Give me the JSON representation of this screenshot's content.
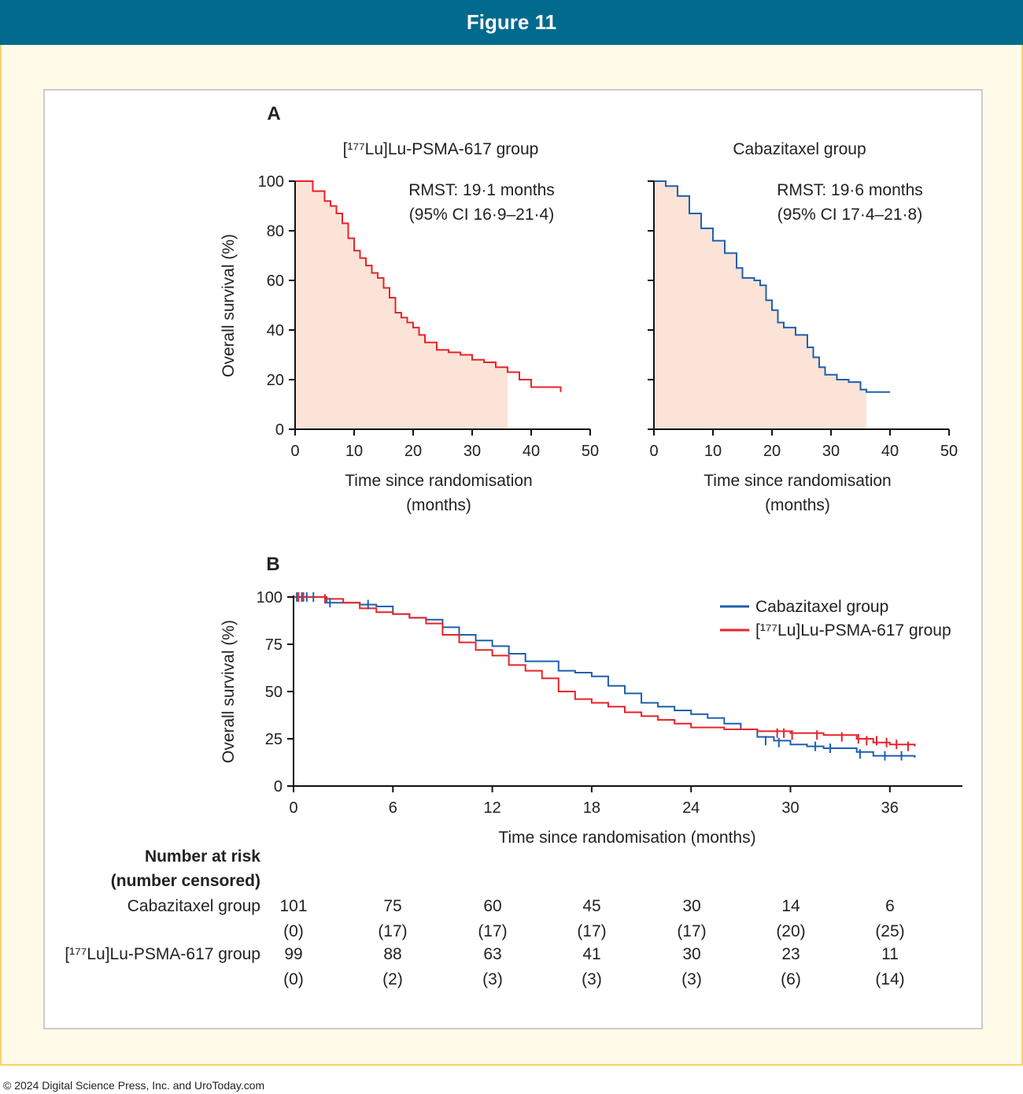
{
  "header": {
    "title": "Figure 11"
  },
  "footer": {
    "copyright": "© 2024 Digital Science Press, Inc. and UroToday.com"
  },
  "colors": {
    "lu": "#e8232a",
    "caba": "#1f5fae",
    "shade": "#fbe3d8",
    "header_bg": "#006a8e"
  },
  "chart_data": [
    {
      "type": "line",
      "panel": "A",
      "title": "[¹⁷⁷Lu]Lu-PSMA-617 group",
      "xlabel": [
        "Time since randomisation",
        "(months)"
      ],
      "ylabel": "Overall survival (%)",
      "xlim": [
        0,
        50
      ],
      "ylim": [
        0,
        100
      ],
      "xticks": [
        0,
        10,
        20,
        30,
        40,
        50
      ],
      "yticks": [
        0,
        20,
        40,
        60,
        80,
        100
      ],
      "annotation": [
        "RMST: 19·1 months",
        "(95% CI 16·9–21·4)"
      ],
      "shaded_until": 36,
      "series": [
        {
          "color": "lu",
          "x": [
            0,
            3,
            5,
            6,
            7,
            8,
            9,
            10,
            11,
            12,
            13,
            14,
            15,
            16,
            17,
            18,
            19,
            20,
            21,
            22,
            24,
            26,
            28,
            30,
            32,
            34,
            36,
            38,
            40,
            45
          ],
          "y": [
            100,
            96,
            92,
            90,
            87,
            83,
            77,
            72,
            69,
            66,
            63,
            61,
            57,
            53,
            47,
            45,
            43,
            41,
            38,
            35,
            32,
            31,
            30,
            28,
            27,
            25,
            23,
            20,
            17,
            15
          ]
        }
      ]
    },
    {
      "type": "line",
      "panel": "",
      "title": "Cabazitaxel group",
      "xlabel": [
        "Time since randomisation",
        "(months)"
      ],
      "ylabel": "",
      "xlim": [
        0,
        50
      ],
      "ylim": [
        0,
        100
      ],
      "xticks": [
        0,
        10,
        20,
        30,
        40,
        50
      ],
      "yticks": [
        0,
        20,
        40,
        60,
        80,
        100
      ],
      "annotation": [
        "RMST: 19·6 months",
        "(95% CI 17·4–21·8)"
      ],
      "shaded_until": 36,
      "series": [
        {
          "color": "caba",
          "x": [
            0,
            2,
            4,
            6,
            8,
            10,
            12,
            14,
            15,
            17,
            18,
            19,
            20,
            21,
            22,
            24,
            26,
            27,
            28,
            29,
            31,
            33,
            35,
            36,
            40
          ],
          "y": [
            100,
            98,
            94,
            87,
            81,
            76,
            71,
            65,
            61,
            60,
            58,
            52,
            48,
            43,
            41,
            38,
            33,
            29,
            25,
            22,
            20,
            19,
            16,
            15,
            15
          ]
        }
      ]
    },
    {
      "type": "line",
      "panel": "B",
      "xlabel": "Time since randomisation (months)",
      "ylabel": "Overall survival (%)",
      "xlim": [
        0,
        40
      ],
      "ylim": [
        0,
        100
      ],
      "xticks": [
        0,
        6,
        12,
        18,
        24,
        30,
        36
      ],
      "yticks": [
        0,
        25,
        50,
        75,
        100
      ],
      "legend_position": "top-right",
      "legend": [
        "Cabazitaxel group",
        "[¹⁷⁷Lu]Lu-PSMA-617 group"
      ],
      "series": [
        {
          "name": "Cabazitaxel group",
          "color": "caba",
          "x": [
            0,
            2,
            4,
            5,
            6,
            7,
            8,
            9,
            10,
            11,
            12,
            13,
            14,
            16,
            17,
            18,
            19,
            20,
            21,
            22,
            23,
            24,
            25,
            26,
            27,
            28,
            29,
            30,
            31,
            32,
            34,
            35,
            36,
            37.5
          ],
          "y": [
            100,
            97,
            96,
            95,
            91,
            89,
            88,
            84,
            80,
            77,
            74,
            70,
            66,
            61,
            60,
            58,
            53,
            49,
            44,
            42,
            40,
            38,
            36,
            33,
            30,
            26,
            24,
            22,
            21,
            20,
            18,
            16,
            16,
            15
          ]
        },
        {
          "name": "[¹⁷⁷Lu]Lu-PSMA-617 group",
          "color": "lu",
          "x": [
            0,
            2,
            3,
            4,
            5,
            6,
            7,
            8,
            9,
            10,
            11,
            12,
            13,
            14,
            15,
            16,
            17,
            18,
            19,
            20,
            21,
            22,
            23,
            24,
            26,
            28,
            30,
            32,
            34,
            35,
            36,
            37.5
          ],
          "y": [
            100,
            99,
            97,
            94,
            92,
            91,
            89,
            86,
            80,
            76,
            72,
            69,
            64,
            61,
            57,
            50,
            46,
            44,
            42,
            39,
            37,
            35,
            33,
            31,
            30,
            29,
            28,
            27,
            25,
            23,
            22,
            21
          ]
        }
      ],
      "censor_marks": {
        "caba": [
          [
            0.2,
            100
          ],
          [
            0.5,
            100
          ],
          [
            0.8,
            100
          ],
          [
            1.2,
            100
          ],
          [
            2.2,
            97
          ],
          [
            4.5,
            96
          ],
          [
            28.5,
            24
          ],
          [
            29.3,
            23
          ],
          [
            31.5,
            21
          ],
          [
            32.4,
            20
          ],
          [
            34.2,
            17
          ],
          [
            35.7,
            16
          ],
          [
            36.7,
            16
          ]
        ],
        "lu": [
          [
            0.3,
            100
          ],
          [
            0.6,
            100
          ],
          [
            1.9,
            99
          ],
          [
            29.2,
            28
          ],
          [
            29.6,
            28
          ],
          [
            30.1,
            27
          ],
          [
            31.6,
            27
          ],
          [
            33.1,
            26
          ],
          [
            34.1,
            25
          ],
          [
            34.6,
            24
          ],
          [
            35.2,
            24
          ],
          [
            35.8,
            23
          ],
          [
            36.4,
            22
          ],
          [
            37.1,
            21
          ]
        ]
      }
    }
  ],
  "risk_table": {
    "heading": [
      "Number at risk",
      "(number censored)"
    ],
    "rows": [
      {
        "label": "Cabazitaxel group",
        "at_risk": [
          "101",
          "75",
          "60",
          "45",
          "30",
          "14",
          "6"
        ],
        "censored": [
          "(0)",
          "(17)",
          "(17)",
          "(17)",
          "(17)",
          "(20)",
          "(25)"
        ]
      },
      {
        "label": "[¹⁷⁷Lu]Lu-PSMA-617 group",
        "at_risk": [
          "99",
          "88",
          "63",
          "41",
          "30",
          "23",
          "11"
        ],
        "censored": [
          "(0)",
          "(2)",
          "(3)",
          "(3)",
          "(3)",
          "(6)",
          "(14)"
        ]
      }
    ]
  }
}
